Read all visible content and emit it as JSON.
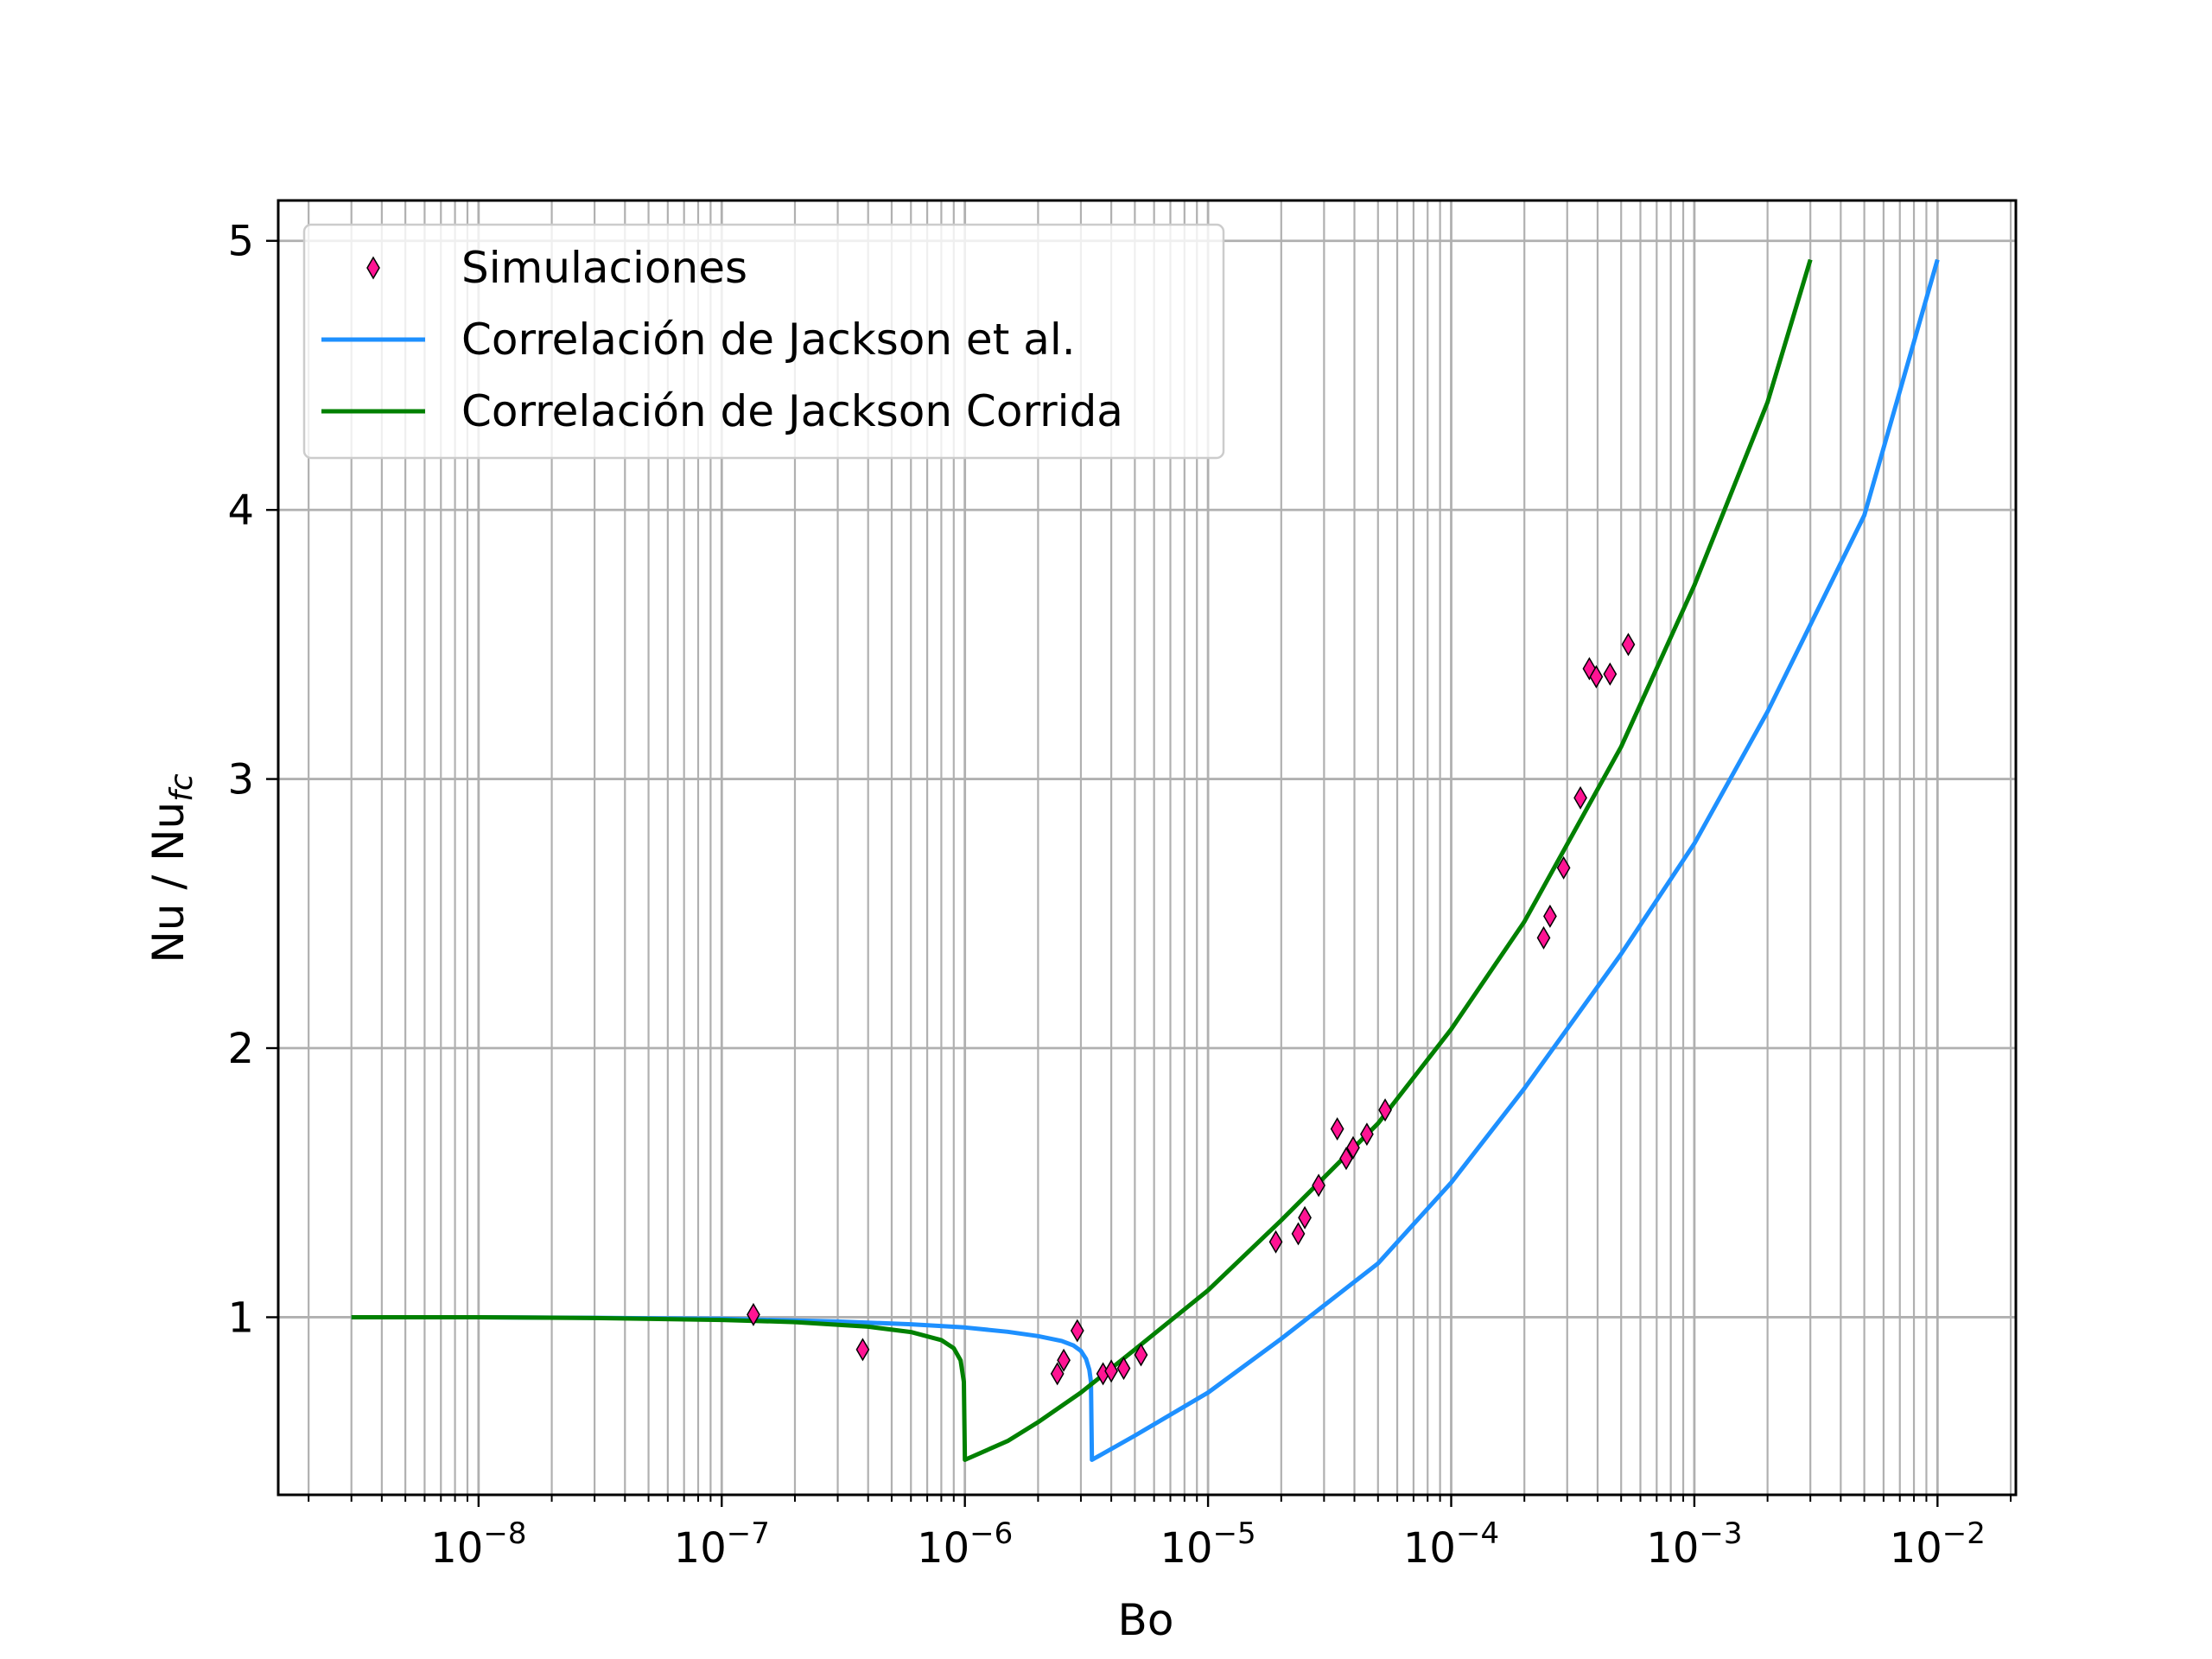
{
  "chart_data": {
    "type": "scatter",
    "xlabel": "Bo",
    "ylabel": "Nu / Nu",
    "ylabel_sub": "fc",
    "xscale": "log",
    "xlim": [
      1.5e-09,
      0.021
    ],
    "ylim": [
      0.34,
      5.15
    ],
    "grid": true,
    "legend_position": "top-left",
    "x_ticks": [
      {
        "value": 1e-08,
        "base": "10",
        "exp": "−8"
      },
      {
        "value": 1e-07,
        "base": "10",
        "exp": "−7"
      },
      {
        "value": 1e-06,
        "base": "10",
        "exp": "−6"
      },
      {
        "value": 1e-05,
        "base": "10",
        "exp": "−5"
      },
      {
        "value": 0.0001,
        "base": "10",
        "exp": "−4"
      },
      {
        "value": 0.001,
        "base": "10",
        "exp": "−3"
      },
      {
        "value": 0.01,
        "base": "10",
        "exp": "−2"
      }
    ],
    "y_ticks": [
      {
        "value": 1,
        "label": "1"
      },
      {
        "value": 2,
        "label": "2"
      },
      {
        "value": 3,
        "label": "3"
      },
      {
        "value": 4,
        "label": "4"
      },
      {
        "value": 5,
        "label": "5"
      }
    ],
    "series": [
      {
        "name": "Simulaciones",
        "kind": "scatter",
        "marker": "thin_diamond",
        "color": "#ff1493",
        "points": [
          [
            1.35e-07,
            1.01
          ],
          [
            3.8e-07,
            0.88
          ],
          [
            2.4e-06,
            0.79
          ],
          [
            2.55e-06,
            0.84
          ],
          [
            2.9e-06,
            0.95
          ],
          [
            3.7e-06,
            0.79
          ],
          [
            4e-06,
            0.8
          ],
          [
            4.5e-06,
            0.81
          ],
          [
            5.3e-06,
            0.86
          ],
          [
            1.9e-05,
            1.28
          ],
          [
            2.35e-05,
            1.31
          ],
          [
            2.5e-05,
            1.37
          ],
          [
            2.85e-05,
            1.49
          ],
          [
            3.4e-05,
            1.7
          ],
          [
            3.7e-05,
            1.59
          ],
          [
            3.95e-05,
            1.63
          ],
          [
            4.5e-05,
            1.68
          ],
          [
            5.35e-05,
            1.77
          ],
          [
            0.00024,
            2.41
          ],
          [
            0.000255,
            2.49
          ],
          [
            0.00029,
            2.67
          ],
          [
            0.00034,
            2.93
          ],
          [
            0.00037,
            3.41
          ],
          [
            0.000395,
            3.38
          ],
          [
            0.00045,
            3.39
          ],
          [
            0.000535,
            3.5
          ]
        ]
      },
      {
        "name": "Correlación de Jackson et al.",
        "kind": "line",
        "color": "#1e90ff",
        "points": [
          [
            3e-09,
            1.0
          ],
          [
            1e-08,
            1.0
          ],
          [
            3e-08,
            0.998
          ],
          [
            1e-07,
            0.994
          ],
          [
            3e-07,
            0.984
          ],
          [
            6e-07,
            0.974
          ],
          [
            1e-06,
            0.962
          ],
          [
            1.5e-06,
            0.946
          ],
          [
            2e-06,
            0.93
          ],
          [
            2.5e-06,
            0.912
          ],
          [
            2.8e-06,
            0.895
          ],
          [
            3e-06,
            0.875
          ],
          [
            3.15e-06,
            0.845
          ],
          [
            3.25e-06,
            0.805
          ],
          [
            3.3e-06,
            0.76
          ],
          [
            3.33e-06,
            0.47
          ],
          [
            5e-06,
            0.56
          ],
          [
            1e-05,
            0.72
          ],
          [
            2e-05,
            0.92
          ],
          [
            5e-05,
            1.2
          ],
          [
            0.0001,
            1.5
          ],
          [
            0.0002,
            1.85
          ],
          [
            0.0005,
            2.35
          ],
          [
            0.001,
            2.76
          ],
          [
            0.002,
            3.25
          ],
          [
            0.005,
            3.98
          ],
          [
            0.01,
            4.93
          ]
        ]
      },
      {
        "name": "Correlación de Jackson Corrida",
        "kind": "line",
        "color": "#008000",
        "points": [
          [
            3e-09,
            1.0
          ],
          [
            1e-08,
            1.0
          ],
          [
            3e-08,
            0.997
          ],
          [
            1e-07,
            0.99
          ],
          [
            2e-07,
            0.982
          ],
          [
            4e-07,
            0.965
          ],
          [
            6e-07,
            0.945
          ],
          [
            8e-07,
            0.915
          ],
          [
            9e-07,
            0.885
          ],
          [
            9.6e-07,
            0.84
          ],
          [
            9.9e-07,
            0.76
          ],
          [
            1e-06,
            0.47
          ],
          [
            1.5e-06,
            0.54
          ],
          [
            2e-06,
            0.61
          ],
          [
            3e-06,
            0.72
          ],
          [
            5e-06,
            0.88
          ],
          [
            1e-05,
            1.1
          ],
          [
            2e-05,
            1.36
          ],
          [
            5e-05,
            1.72
          ],
          [
            0.0001,
            2.07
          ],
          [
            0.0002,
            2.47
          ],
          [
            0.0005,
            3.12
          ],
          [
            0.001,
            3.72
          ],
          [
            0.002,
            4.4
          ],
          [
            0.003,
            4.93
          ]
        ]
      }
    ]
  }
}
